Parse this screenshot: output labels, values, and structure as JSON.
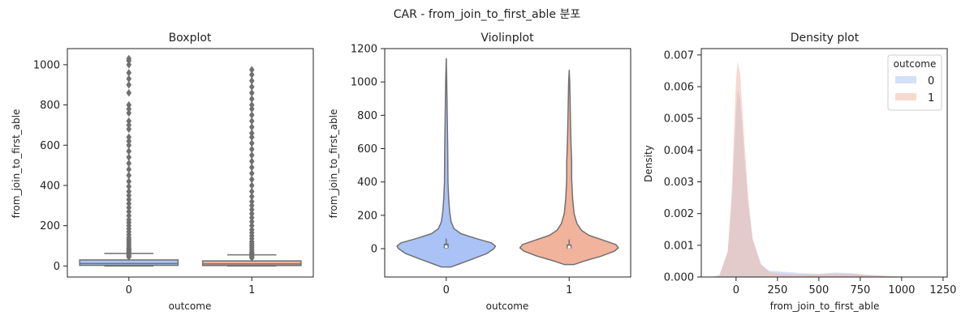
{
  "figure": {
    "title": "CAR - from_join_to_first_able 분포"
  },
  "colors": {
    "outcome_0": "#aac2f6",
    "outcome_1": "#f1b39b",
    "box_line": "#707070",
    "axis": "#222222"
  },
  "chart_data": [
    {
      "type": "box",
      "title": "Boxplot",
      "xlabel": "outcome",
      "ylabel": "from_join_to_first_able",
      "categories": [
        "0",
        "1"
      ],
      "ylim": [
        -55,
        1080
      ],
      "yticks": [
        0,
        200,
        400,
        600,
        800,
        1000
      ],
      "series": [
        {
          "category": "0",
          "q1": 3,
          "median": 12,
          "q3": 30,
          "whisker_low": 0,
          "whisker_high": 62,
          "outliers": [
            45,
            50,
            55,
            65,
            70,
            75,
            80,
            85,
            90,
            100,
            110,
            120,
            130,
            140,
            155,
            170,
            185,
            200,
            215,
            230,
            250,
            270,
            290,
            310,
            330,
            350,
            370,
            395,
            420,
            450,
            480,
            510,
            540,
            570,
            600,
            620,
            640,
            680,
            700,
            720,
            760,
            780,
            800,
            860,
            900,
            930,
            960,
            1000,
            1020,
            1030
          ]
        },
        {
          "category": "1",
          "q1": 2,
          "median": 10,
          "q3": 25,
          "whisker_low": 0,
          "whisker_high": 55,
          "outliers": [
            40,
            45,
            50,
            60,
            65,
            70,
            80,
            90,
            100,
            110,
            120,
            135,
            150,
            165,
            180,
            200,
            220,
            240,
            260,
            280,
            300,
            320,
            345,
            370,
            400,
            430,
            460,
            490,
            520,
            550,
            580,
            610,
            640,
            660,
            690,
            720,
            750,
            780,
            800,
            830,
            860,
            890,
            920,
            950,
            975
          ]
        }
      ]
    },
    {
      "type": "violin",
      "title": "Violinplot",
      "xlabel": "outcome",
      "ylabel": "from_join_to_first_able",
      "categories": [
        "0",
        "1"
      ],
      "ylim": [
        -170,
        1200
      ],
      "yticks": [
        0,
        200,
        400,
        600,
        800,
        1000,
        1200
      ],
      "series": [
        {
          "category": "0",
          "min": -110,
          "max": 1140,
          "q1": 3,
          "median": 12,
          "q3": 30,
          "whisker_low": 0,
          "whisker_high": 60,
          "profile": [
            [
              -110,
              0.1
            ],
            [
              -90,
              0.28
            ],
            [
              -60,
              0.55
            ],
            [
              -30,
              0.82
            ],
            [
              0,
              0.97
            ],
            [
              15,
              1.0
            ],
            [
              35,
              0.92
            ],
            [
              60,
              0.62
            ],
            [
              90,
              0.3
            ],
            [
              120,
              0.16
            ],
            [
              160,
              0.1
            ],
            [
              220,
              0.07
            ],
            [
              300,
              0.05
            ],
            [
              400,
              0.035
            ],
            [
              600,
              0.03
            ],
            [
              800,
              0.02
            ],
            [
              1000,
              0.01
            ],
            [
              1140,
              0.0
            ]
          ]
        },
        {
          "category": "1",
          "min": -95,
          "max": 1070,
          "q1": 2,
          "median": 10,
          "q3": 25,
          "whisker_low": 0,
          "whisker_high": 55,
          "profile": [
            [
              -95,
              0.1
            ],
            [
              -75,
              0.3
            ],
            [
              -45,
              0.65
            ],
            [
              -15,
              0.92
            ],
            [
              5,
              1.0
            ],
            [
              25,
              0.95
            ],
            [
              50,
              0.7
            ],
            [
              80,
              0.4
            ],
            [
              110,
              0.25
            ],
            [
              150,
              0.16
            ],
            [
              210,
              0.1
            ],
            [
              300,
              0.07
            ],
            [
              420,
              0.05
            ],
            [
              520,
              0.05
            ],
            [
              600,
              0.04
            ],
            [
              700,
              0.03
            ],
            [
              850,
              0.02
            ],
            [
              1000,
              0.01
            ],
            [
              1070,
              0.0
            ]
          ]
        }
      ]
    },
    {
      "type": "area",
      "title": "Density plot",
      "xlabel": "from_join_to_first_able",
      "ylabel": "Density",
      "xlim": [
        -210,
        1275
      ],
      "ylim": [
        0,
        0.0072
      ],
      "xticks": [
        0,
        250,
        500,
        750,
        1000,
        1250
      ],
      "yticks": [
        0.0,
        0.001,
        0.002,
        0.003,
        0.004,
        0.005,
        0.006,
        0.007
      ],
      "legend": {
        "title": "outcome",
        "placement": "top-right",
        "entries": [
          "0",
          "1"
        ]
      },
      "series": [
        {
          "name": "0",
          "x": [
            -150,
            -100,
            -50,
            -25,
            0,
            10,
            25,
            50,
            75,
            100,
            150,
            200,
            250,
            300,
            400,
            500,
            600,
            700,
            800,
            900,
            1000,
            1050,
            1100
          ],
          "y": [
            0.0,
            6e-05,
            0.0008,
            0.0024,
            0.0052,
            0.0059,
            0.0056,
            0.0038,
            0.0022,
            0.0012,
            0.0004,
            0.0002,
            0.00018,
            0.00016,
            0.00012,
            0.0001,
            0.00014,
            0.00012,
            6e-05,
            3e-05,
            1e-05,
            5e-06,
            0.0
          ]
        },
        {
          "name": "1",
          "x": [
            -150,
            -100,
            -50,
            -25,
            0,
            10,
            25,
            50,
            75,
            100,
            150,
            200,
            250,
            300,
            400,
            500,
            600,
            700,
            800,
            900,
            1000,
            1050,
            1100
          ],
          "y": [
            0.0,
            5e-05,
            0.0008,
            0.0028,
            0.0062,
            0.0068,
            0.0064,
            0.0043,
            0.0024,
            0.0012,
            0.0004,
            0.00016,
            0.00012,
            0.0001,
            8e-05,
            9e-05,
            0.00011,
            0.0001,
            7e-05,
            4e-05,
            2e-05,
            1e-05,
            0.0
          ]
        }
      ]
    }
  ]
}
